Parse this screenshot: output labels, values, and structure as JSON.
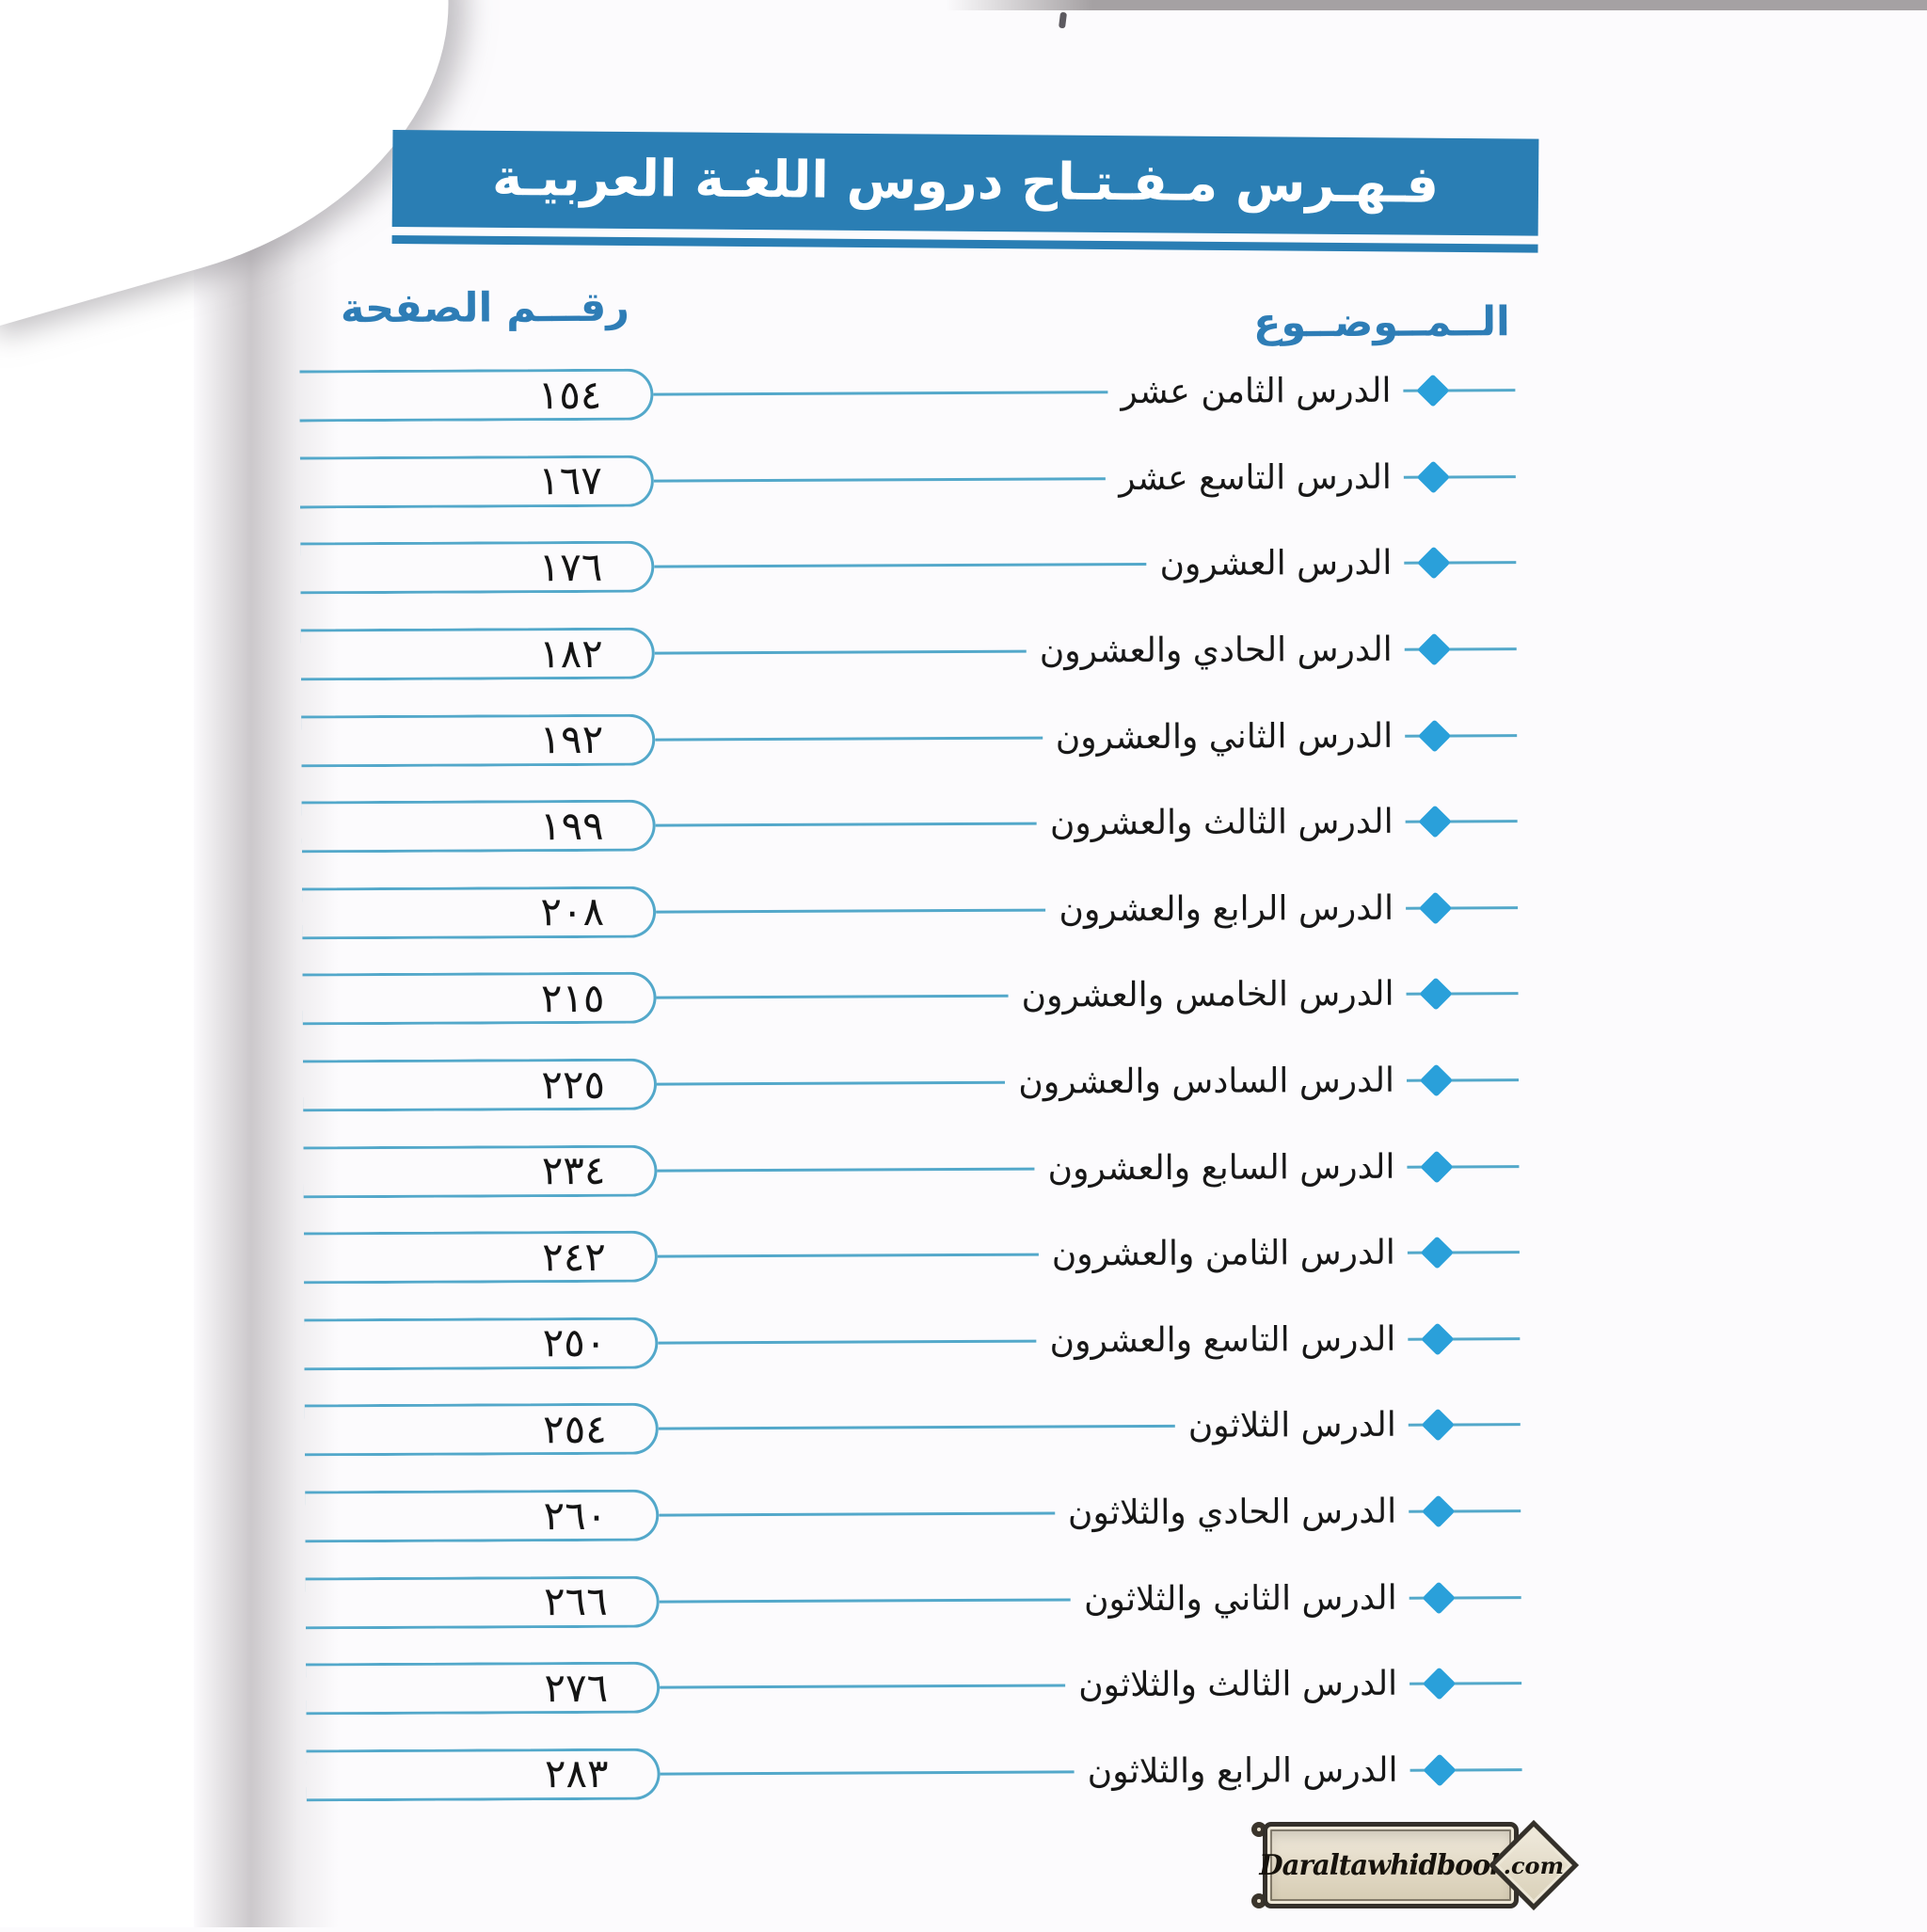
{
  "banner": {
    "title": "فـهـرس مـفـتـاح دروس اللغـة العربيـة"
  },
  "columns": {
    "page_number_label": "رقـــم الصفحة",
    "topic_label": "الــمــوضــوع"
  },
  "toc": {
    "rows": [
      {
        "title": "الدرس الثامن عشر",
        "page_display": "١٥٤",
        "page_value": 154
      },
      {
        "title": "الدرس التاسع عشر",
        "page_display": "١٦٧",
        "page_value": 167
      },
      {
        "title": "الدرس العشرون",
        "page_display": "١٧٦",
        "page_value": 176
      },
      {
        "title": "الدرس الحادي والعشرون",
        "page_display": "١٨٢",
        "page_value": 182
      },
      {
        "title": "الدرس الثاني والعشرون",
        "page_display": "١٩٢",
        "page_value": 192
      },
      {
        "title": "الدرس الثالث والعشرون",
        "page_display": "١٩٩",
        "page_value": 199
      },
      {
        "title": "الدرس الرابع والعشرون",
        "page_display": "٢٠٨",
        "page_value": 208
      },
      {
        "title": "الدرس الخامس والعشرون",
        "page_display": "٢١٥",
        "page_value": 215
      },
      {
        "title": "الدرس السادس والعشرون",
        "page_display": "٢٢٥",
        "page_value": 225
      },
      {
        "title": "الدرس السابع والعشرون",
        "page_display": "٢٣٤",
        "page_value": 234
      },
      {
        "title": "الدرس الثامن والعشرون",
        "page_display": "٢٤٢",
        "page_value": 242
      },
      {
        "title": "الدرس التاسع والعشرون",
        "page_display": "٢٥٠",
        "page_value": 250
      },
      {
        "title": "الدرس الثلاثون",
        "page_display": "٢٥٤",
        "page_value": 254
      },
      {
        "title": "الدرس الحادي والثلاثون",
        "page_display": "٢٦٠",
        "page_value": 260
      },
      {
        "title": "الدرس الثاني والثلاثون",
        "page_display": "٢٦٦",
        "page_value": 266
      },
      {
        "title": "الدرس الثالث والثلاثون",
        "page_display": "٢٧٦",
        "page_value": 276
      },
      {
        "title": "الدرس الرابع والثلاثون",
        "page_display": "٢٨٣",
        "page_value": 283
      }
    ]
  },
  "watermark": {
    "name": "Daraltawhidbooks",
    "suffix": ".com"
  },
  "colors": {
    "banner_blue": "#2a7eb4",
    "rule_blue": "#53a8ca",
    "diamond_blue": "#2aa0da",
    "header_text_blue": "#2e7db6",
    "text_black": "#171717",
    "watermark_border": "#34302a",
    "watermark_parchment": "#e9e2d0"
  }
}
